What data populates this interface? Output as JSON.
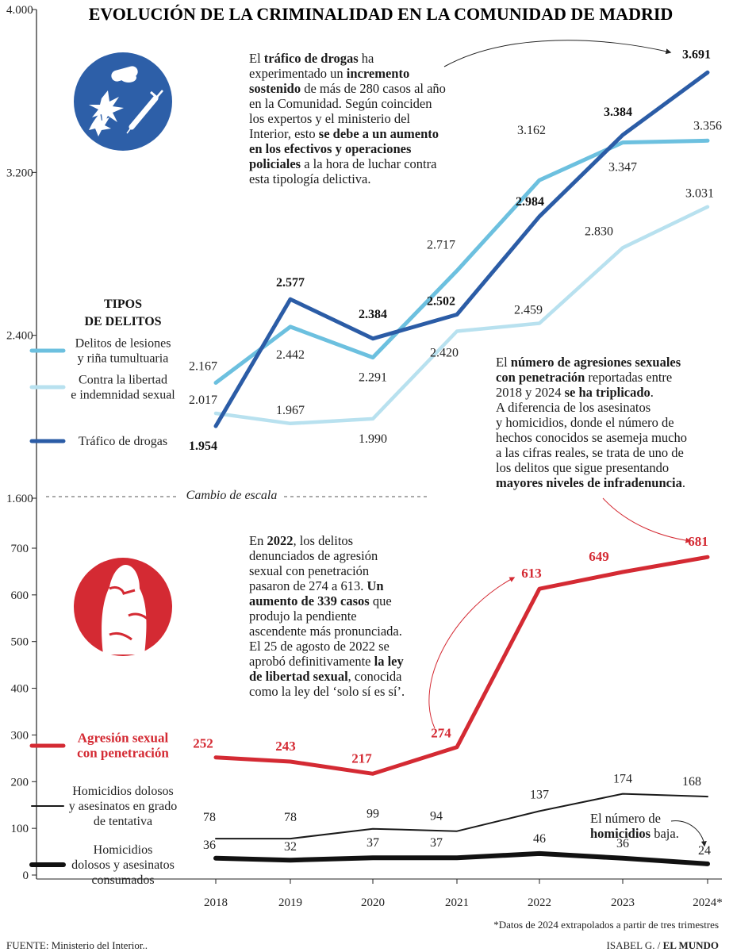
{
  "title": "EVOLUCIÓN DE LA CRIMINALIDAD EN LA COMUNIDAD DE MADRID",
  "legend_heading": [
    "TIPOS",
    "DE DELITOS"
  ],
  "scale_change_label": "Cambio de escala",
  "colors": {
    "lesiones": "#6cc0df",
    "libertad": "#b8e1ef",
    "drogas": "#2b5ca6",
    "agresion": "#d42a33",
    "homicidios_tentativa": "#1a1a1a",
    "homicidios_consumados": "#111111",
    "icon_blue": "#2d5fa8",
    "icon_red": "#d42a33"
  },
  "icons": {
    "top": "drugs-icon",
    "bottom": "assault-icon"
  },
  "annotations": {
    "drugs": [
      [
        {
          "t": "El "
        },
        {
          "t": "tráfico de drogas",
          "b": true
        },
        {
          "t": " ha"
        }
      ],
      [
        {
          "t": "experimentado un "
        },
        {
          "t": "incremento",
          "b": true
        }
      ],
      [
        {
          "t": "sostenido",
          "b": true
        },
        {
          "t": " de más de 280 casos al año"
        }
      ],
      [
        {
          "t": "en la Comunidad. Según coinciden"
        }
      ],
      [
        {
          "t": "los expertos y el ministerio del"
        }
      ],
      [
        {
          "t": "Interior, esto "
        },
        {
          "t": "se debe a un aumento",
          "b": true
        }
      ],
      [
        {
          "t": "en los efectivos y operaciones",
          "b": true
        }
      ],
      [
        {
          "t": "policiales",
          "b": true
        },
        {
          "t": " a la hora de luchar contra"
        }
      ],
      [
        {
          "t": "esta tipología delictiva."
        }
      ]
    ],
    "sexual": [
      [
        {
          "t": "El "
        },
        {
          "t": "número de agresiones sexuales",
          "b": true
        }
      ],
      [
        {
          "t": "con penetración",
          "b": true
        },
        {
          "t": " reportadas entre"
        }
      ],
      [
        {
          "t": "2018 y 2024 "
        },
        {
          "t": "se ha triplicado",
          "b": true
        },
        {
          "t": "."
        }
      ],
      [
        {
          "t": "A diferencia de los asesinatos"
        }
      ],
      [
        {
          "t": "y homicidios, donde el número de"
        }
      ],
      [
        {
          "t": "hechos conocidos se asemeja mucho"
        }
      ],
      [
        {
          "t": "a las cifras reales, se trata de uno de"
        }
      ],
      [
        {
          "t": "los delitos que sigue presentando"
        }
      ],
      [
        {
          "t": "mayores niveles de infradenuncia",
          "b": true
        },
        {
          "t": "."
        }
      ]
    ],
    "law": [
      [
        {
          "t": "En "
        },
        {
          "t": "2022",
          "b": true
        },
        {
          "t": ", los delitos"
        }
      ],
      [
        {
          "t": "denunciados de agresión"
        }
      ],
      [
        {
          "t": "sexual con penetración"
        }
      ],
      [
        {
          "t": "pasaron de 274 a 613. "
        },
        {
          "t": "Un",
          "b": true
        }
      ],
      [
        {
          "t": "aumento de 339 casos",
          "b": true
        },
        {
          "t": " que"
        }
      ],
      [
        {
          "t": "produjo la pendiente"
        }
      ],
      [
        {
          "t": "ascendente más pronunciada."
        }
      ],
      [
        {
          "t": "El 25 de agosto de 2022 se"
        }
      ],
      [
        {
          "t": "aprobó definitivamente "
        },
        {
          "t": "la ley",
          "b": true
        }
      ],
      [
        {
          "t": "de libertad sexual",
          "b": true
        },
        {
          "t": ", conocida"
        }
      ],
      [
        {
          "t": "como la ley del ‘solo sí es sí’."
        }
      ]
    ],
    "homicides": [
      [
        {
          "t": "El número de"
        }
      ],
      [
        {
          "t": "homicidios",
          "b": true
        },
        {
          "t": " baja."
        }
      ]
    ]
  },
  "footnote": "*Datos de 2024 extrapolados a partir de tres trimestres",
  "source": "FUENTE:  Ministerio del Interior..",
  "credit_author": "ISABEL G. /",
  "credit_outlet": "EL MUNDO",
  "chart_data": [
    {
      "type": "line",
      "title": "EVOLUCIÓN DE LA CRIMINALIDAD EN LA COMUNIDAD DE MADRID",
      "x": [
        "2018",
        "2019",
        "2020",
        "2021",
        "2022",
        "2023",
        "2024*"
      ],
      "ylim": [
        1600,
        4000
      ],
      "yticks": [
        "4.000",
        "3.200",
        "2.400",
        "1.600"
      ],
      "ytick_values": [
        4000,
        3200,
        2400,
        1600
      ],
      "series": [
        {
          "name": "Delitos de lesiones y riña tumultuaria",
          "legend": [
            "Delitos de lesiones",
            "y riña tumultuaria"
          ],
          "key": "lesiones",
          "values": [
            2167,
            2442,
            2291,
            2717,
            3162,
            3347,
            3356
          ],
          "labels": [
            "2.167",
            "2.442",
            "2.291",
            "2.717",
            "3.162",
            "3.347",
            "3.356"
          ]
        },
        {
          "name": "Contra la libertad e indemnidad sexual",
          "legend": [
            "Contra la libertad",
            "e indemnidad sexual"
          ],
          "key": "libertad",
          "values": [
            2017,
            1967,
            1990,
            2420,
            2459,
            2830,
            3031
          ],
          "labels": [
            "2.017",
            "1.967",
            "1.990",
            "2.420",
            "2.459",
            "2.830",
            "3.031"
          ]
        },
        {
          "name": "Tráfico de drogas",
          "legend": [
            "Tráfico de drogas"
          ],
          "key": "drogas",
          "values": [
            1954,
            2577,
            2384,
            2502,
            2984,
            3384,
            3691
          ],
          "labels": [
            "1.954",
            "2.577",
            "2.384",
            "2.502",
            "2.984",
            "3.384",
            "3.691"
          ]
        }
      ]
    },
    {
      "type": "line",
      "x": [
        "2018",
        "2019",
        "2020",
        "2021",
        "2022",
        "2023",
        "2024*"
      ],
      "ylim": [
        0,
        700
      ],
      "yticks": [
        "700",
        "600",
        "500",
        "400",
        "300",
        "200",
        "100",
        "0"
      ],
      "ytick_values": [
        700,
        600,
        500,
        400,
        300,
        200,
        100,
        0
      ],
      "series": [
        {
          "name": "Agresión sexual con penetración",
          "legend": [
            "Agresión sexual",
            "con penetración"
          ],
          "key": "agresion",
          "values": [
            252,
            243,
            217,
            274,
            613,
            649,
            681
          ]
        },
        {
          "name": "Homicidios dolosos y asesinatos en grado de tentativa",
          "legend": [
            "Homicidios dolosos",
            "y asesinatos en grado",
            "de tentativa"
          ],
          "key": "homicidios_tentativa",
          "values": [
            78,
            78,
            99,
            94,
            137,
            174,
            168
          ]
        },
        {
          "name": "Homicidios dolosos y asesinatos consumados",
          "legend": [
            "Homicidios",
            "dolosos y asesinatos",
            "consumados"
          ],
          "key": "homicidios_consumados",
          "values": [
            36,
            32,
            37,
            37,
            46,
            36,
            24
          ]
        }
      ]
    }
  ]
}
